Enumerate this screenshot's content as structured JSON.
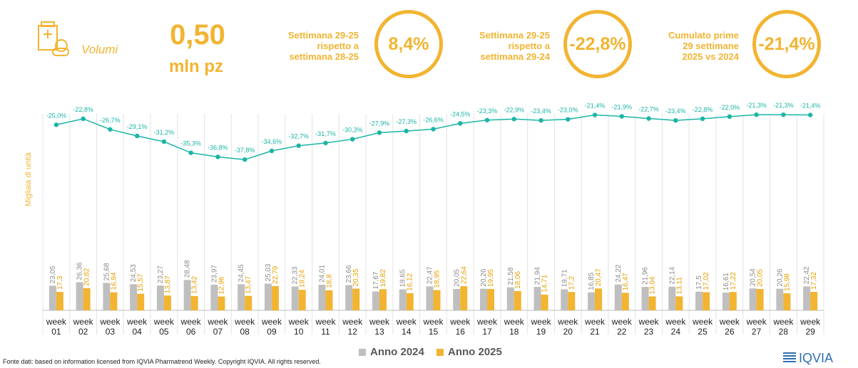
{
  "header": {
    "volume_label": "Volumi",
    "volume_value": "0,50",
    "volume_unit": "mln pz",
    "kpis": [
      {
        "line1": "Settimana 29-25",
        "line2": "rispetto a",
        "line3": "settimana 28-25",
        "value": "8,4%"
      },
      {
        "line1": "Settimana 29-25",
        "line2": "rispetto a",
        "line3": "settimana 29-24",
        "value": "-22,8%"
      },
      {
        "line1": "Cumulato prime",
        "line2": "29 settimane",
        "line3": "2025 vs 2024",
        "value": "-21,4%"
      }
    ]
  },
  "colors": {
    "accent": "#F2B431",
    "series_2024": "#BFBFBF",
    "series_2025": "#F2B431",
    "line": "#1AB5A5"
  },
  "chart_data": {
    "type": "bar",
    "ylabel": "Migliaia di unità",
    "categories": [
      "week 01",
      "week 02",
      "week 03",
      "week 04",
      "week 05",
      "week 06",
      "week 07",
      "week 08",
      "week 09",
      "week 10",
      "week 11",
      "week 12",
      "week 13",
      "week 14",
      "week 15",
      "week 16",
      "week 17",
      "week 18",
      "week 19",
      "week 20",
      "week 21",
      "week 22",
      "week 23",
      "week 24",
      "week 25",
      "week 26",
      "week 27",
      "week 28",
      "week 29"
    ],
    "series": [
      {
        "name": "Anno 2024",
        "values": [
          23.05,
          26.36,
          25.68,
          24.53,
          23.27,
          28.48,
          23.97,
          24.45,
          25.03,
          22.33,
          24.01,
          23.66,
          17.67,
          19.65,
          22.47,
          20.05,
          20.26,
          21.58,
          21.94,
          19.71,
          16.85,
          24.22,
          21.96,
          22.14,
          17.5,
          16.61,
          20.54,
          20.26,
          22.42
        ]
      },
      {
        "name": "Anno 2025",
        "values": [
          17.3,
          20.82,
          16.94,
          15.57,
          13.87,
          13.42,
          12.96,
          13.47,
          22.79,
          19.24,
          18.8,
          20.35,
          19.82,
          16.12,
          18.95,
          22.64,
          19.95,
          18.06,
          14.71,
          17.2,
          20.47,
          16.47,
          13.04,
          13.11,
          17.02,
          17.22,
          20.05,
          15.98,
          17.32
        ]
      }
    ],
    "bar_labels_2024": [
      "23,05",
      "26,36",
      "25,68",
      "24,53",
      "23,27",
      "28,48",
      "23,97",
      "24,45",
      "25,03",
      "22,33",
      "24,01",
      "23,66",
      "17,67",
      "19,65",
      "22,47",
      "20,05",
      "20,26",
      "21,58",
      "21,94",
      "19,71",
      "16,85",
      "24,22",
      "21,96",
      "22,14",
      "17,5",
      "16,61",
      "20,54",
      "20,26",
      "22,42"
    ],
    "bar_labels_2025": [
      "17,3",
      "20,82",
      "16,94",
      "15,57",
      "13,87",
      "13,42",
      "12,96",
      "13,47",
      "22,79",
      "19,24",
      "18,8",
      "20,35",
      "19,82",
      "16,12",
      "18,95",
      "22,64",
      "19,95",
      "18,06",
      "14,71",
      "17,2",
      "20,47",
      "16,47",
      "13,04",
      "13,11",
      "17,02",
      "17,22",
      "20,05",
      "15,98",
      "17,32"
    ],
    "line": {
      "values": [
        -25.0,
        -22.8,
        -26.7,
        -29.1,
        -31.2,
        -35.3,
        -36.8,
        -37.8,
        -34.6,
        -32.7,
        -31.7,
        -30.3,
        -27.9,
        -27.3,
        -26.6,
        -24.5,
        -23.3,
        -22.9,
        -23.4,
        -23.0,
        -21.4,
        -21.9,
        -22.7,
        -23.4,
        -22.8,
        -22.0,
        -21.3,
        -21.3,
        -21.4
      ],
      "labels": [
        "-25,0%",
        "-22,8%",
        "-26,7%",
        "-29,1%",
        "-31,2%",
        "-35,3%",
        "-36,8%",
        "-37,8%",
        "-34,6%",
        "-32,7%",
        "-31,7%",
        "-30,3%",
        "-27,9%",
        "-27,3%",
        "-26,6%",
        "-24,5%",
        "-23,3%",
        "-22,9%",
        "-23,4%",
        "-23,0%",
        "-21,4%",
        "-21,9%",
        "-22,7%",
        "-23,4%",
        "-22,8%",
        "-22,0%",
        "-21,3%",
        "-21,3%",
        "-21,4%"
      ]
    },
    "legend": [
      "Anno 2024",
      "Anno 2025"
    ],
    "legend_position": "bottom"
  },
  "footer": {
    "source": "Fonte dati: based on information licensed from IQVIA Pharmatrend Weekly. Copyright IQVIA. All rights reserved.",
    "logo_text": "IQVIA"
  }
}
